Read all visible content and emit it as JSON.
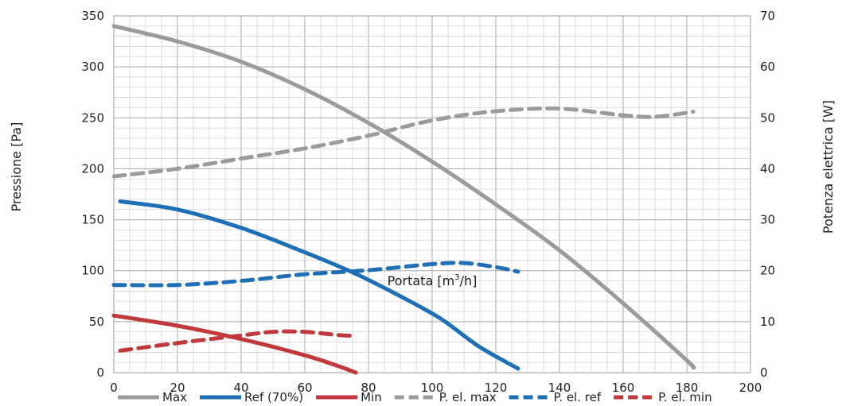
{
  "chart_data": {
    "type": "line",
    "xlabel_prefix": "Portata [m",
    "xlabel_sup": "3",
    "xlabel_suffix": "/h]",
    "ylabel": "Pressione [Pa]",
    "y2label": "Potenza elettrica [W]",
    "xlim": [
      0,
      200
    ],
    "ylim": [
      0,
      350
    ],
    "y2lim": [
      0,
      70
    ],
    "xticks": [
      0,
      20,
      40,
      60,
      80,
      100,
      120,
      140,
      160,
      180,
      200
    ],
    "yticks": [
      0,
      50,
      100,
      150,
      200,
      250,
      300,
      350
    ],
    "y2ticks": [
      0,
      10,
      20,
      30,
      40,
      50,
      60,
      70
    ],
    "grid": true,
    "legend_position": "bottom",
    "series": [
      {
        "name": "Max",
        "axis": "left",
        "color": "#9b9b9b",
        "dash": "solid",
        "points": [
          [
            0,
            340
          ],
          [
            20,
            325
          ],
          [
            40,
            305
          ],
          [
            60,
            278
          ],
          [
            80,
            245
          ],
          [
            100,
            207
          ],
          [
            120,
            165
          ],
          [
            140,
            120
          ],
          [
            160,
            68
          ],
          [
            180,
            12
          ],
          [
            182,
            5
          ]
        ]
      },
      {
        "name": "Ref (70%)",
        "axis": "left",
        "color": "#1f6fb6",
        "dash": "solid",
        "points": [
          [
            2,
            168
          ],
          [
            20,
            160
          ],
          [
            40,
            142
          ],
          [
            60,
            118
          ],
          [
            76,
            97
          ],
          [
            90,
            75
          ],
          [
            100,
            58
          ],
          [
            105,
            48
          ],
          [
            115,
            25
          ],
          [
            127,
            4
          ]
        ]
      },
      {
        "name": "Min",
        "axis": "left",
        "color": "#c1393c",
        "dash": "solid",
        "points": [
          [
            0,
            56
          ],
          [
            20,
            46
          ],
          [
            40,
            33
          ],
          [
            60,
            17
          ],
          [
            70,
            7
          ],
          [
            76,
            0
          ]
        ]
      },
      {
        "name": "P. el. max",
        "axis": "right",
        "color": "#9b9b9b",
        "dash": "dashed",
        "points": [
          [
            0,
            38.5
          ],
          [
            20,
            40
          ],
          [
            40,
            42
          ],
          [
            60,
            44
          ],
          [
            80,
            46.5
          ],
          [
            100,
            49.5
          ],
          [
            120,
            51.3
          ],
          [
            140,
            51.8
          ],
          [
            160,
            50.5
          ],
          [
            170,
            50.2
          ],
          [
            182,
            51.2
          ]
        ]
      },
      {
        "name": "P. el. ref",
        "axis": "right",
        "color": "#1f6fb6",
        "dash": "dashed",
        "points": [
          [
            0,
            17.2
          ],
          [
            20,
            17.2
          ],
          [
            40,
            18
          ],
          [
            60,
            19.3
          ],
          [
            80,
            20.1
          ],
          [
            100,
            21.3
          ],
          [
            110,
            21.5
          ],
          [
            120,
            20.7
          ],
          [
            127,
            19.8
          ]
        ]
      },
      {
        "name": "P. el. min",
        "axis": "right",
        "color": "#c1393c",
        "dash": "dashed",
        "points": [
          [
            2,
            4.3
          ],
          [
            20,
            5.8
          ],
          [
            40,
            7.3
          ],
          [
            50,
            8
          ],
          [
            60,
            8
          ],
          [
            70,
            7.4
          ],
          [
            76,
            7.2
          ]
        ]
      }
    ]
  }
}
